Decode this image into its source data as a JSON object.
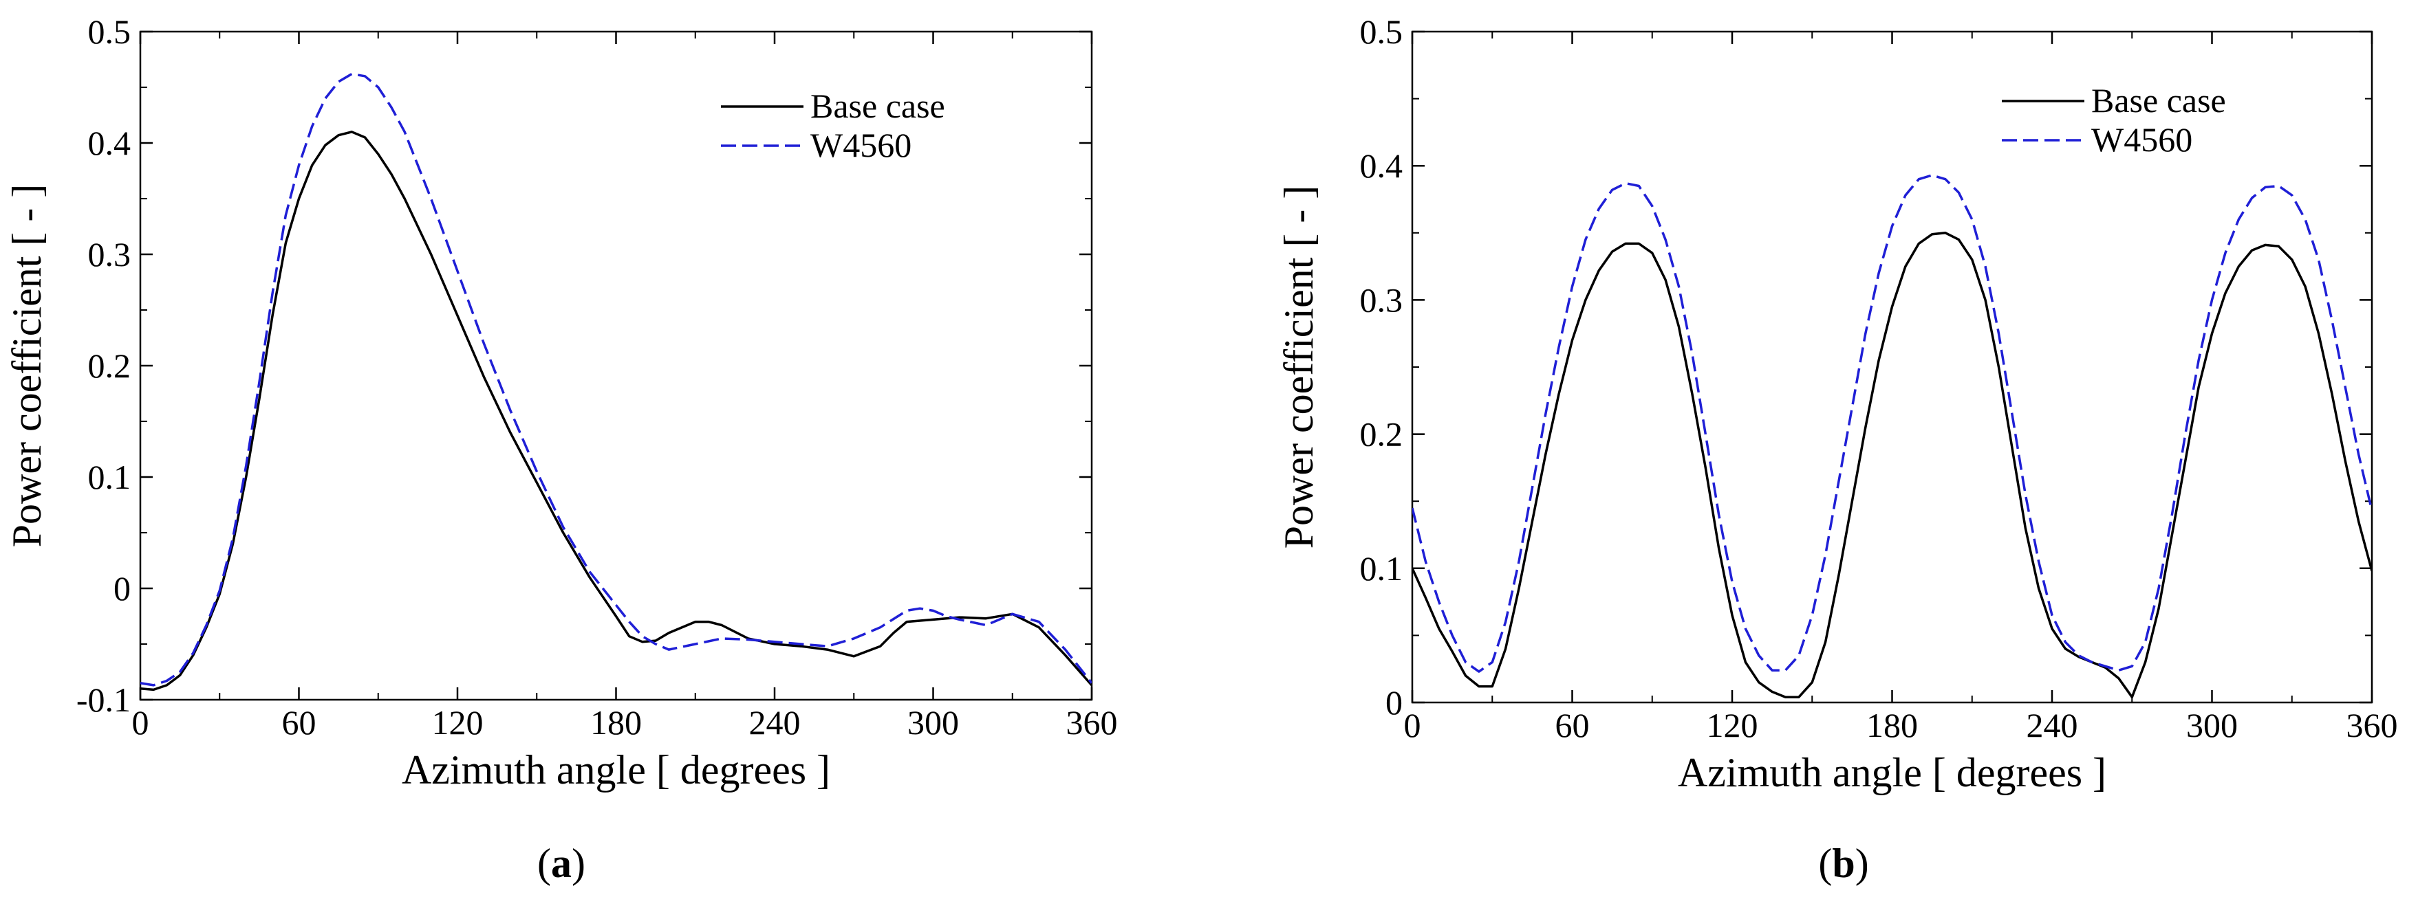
{
  "figure": {
    "panels": [
      {
        "label_open": "(",
        "label_letter": "a",
        "label_close": ")"
      },
      {
        "label_open": "(",
        "label_letter": "b",
        "label_close": ")"
      }
    ]
  },
  "chart_data": [
    {
      "type": "line",
      "panel": "a",
      "title": "",
      "xlabel": "Azimuth angle [ degrees ]",
      "ylabel": "Power coefficient [ - ]",
      "xlim": [
        0,
        360
      ],
      "ylim": [
        -0.1,
        0.5
      ],
      "xticks": [
        0,
        60,
        120,
        180,
        240,
        300,
        360
      ],
      "xtick_labels": [
        "0",
        "60",
        "120",
        "180",
        "240",
        "300",
        "360"
      ],
      "yticks": [
        -0.1,
        0,
        0.1,
        0.2,
        0.3,
        0.4,
        0.5
      ],
      "ytick_labels": [
        "-0.1",
        "0",
        "0.1",
        "0.2",
        "0.3",
        "0.4",
        "0.5"
      ],
      "legend_position": "top-right",
      "series": [
        {
          "name": "Base case",
          "color": "#000000",
          "dash": "solid",
          "x": [
            0,
            5,
            10,
            15,
            20,
            25,
            30,
            35,
            40,
            45,
            50,
            55,
            60,
            65,
            70,
            75,
            80,
            85,
            90,
            95,
            100,
            110,
            120,
            130,
            140,
            150,
            160,
            170,
            180,
            185,
            190,
            195,
            200,
            210,
            215,
            220,
            230,
            240,
            250,
            260,
            270,
            280,
            285,
            290,
            300,
            310,
            320,
            330,
            340,
            350,
            360
          ],
          "y": [
            -0.09,
            -0.091,
            -0.087,
            -0.078,
            -0.06,
            -0.035,
            -0.005,
            0.04,
            0.1,
            0.17,
            0.245,
            0.31,
            0.35,
            0.38,
            0.398,
            0.407,
            0.41,
            0.405,
            0.39,
            0.372,
            0.35,
            0.3,
            0.245,
            0.19,
            0.14,
            0.095,
            0.05,
            0.01,
            -0.025,
            -0.043,
            -0.048,
            -0.047,
            -0.04,
            -0.03,
            -0.03,
            -0.033,
            -0.045,
            -0.05,
            -0.052,
            -0.055,
            -0.061,
            -0.052,
            -0.04,
            -0.03,
            -0.028,
            -0.026,
            -0.027,
            -0.023,
            -0.035,
            -0.06,
            -0.087
          ]
        },
        {
          "name": "W4560",
          "color": "#1f1fd6",
          "dash": "dashed",
          "x": [
            0,
            5,
            10,
            15,
            20,
            25,
            30,
            35,
            40,
            45,
            50,
            55,
            60,
            65,
            70,
            75,
            80,
            85,
            90,
            95,
            100,
            110,
            120,
            130,
            140,
            150,
            160,
            170,
            180,
            185,
            190,
            195,
            200,
            210,
            220,
            230,
            240,
            250,
            260,
            270,
            280,
            290,
            295,
            300,
            305,
            310,
            320,
            330,
            340,
            350,
            360
          ],
          "y": [
            -0.085,
            -0.087,
            -0.083,
            -0.075,
            -0.058,
            -0.033,
            -0.002,
            0.045,
            0.11,
            0.185,
            0.265,
            0.335,
            0.38,
            0.415,
            0.44,
            0.455,
            0.462,
            0.46,
            0.45,
            0.432,
            0.41,
            0.35,
            0.285,
            0.22,
            0.16,
            0.105,
            0.055,
            0.015,
            -0.015,
            -0.03,
            -0.043,
            -0.05,
            -0.055,
            -0.05,
            -0.045,
            -0.046,
            -0.048,
            -0.05,
            -0.052,
            -0.045,
            -0.035,
            -0.02,
            -0.018,
            -0.02,
            -0.025,
            -0.028,
            -0.033,
            -0.023,
            -0.03,
            -0.055,
            -0.085
          ]
        }
      ]
    },
    {
      "type": "line",
      "panel": "b",
      "title": "",
      "xlabel": "Azimuth angle [ degrees ]",
      "ylabel": "Power coefficient [ - ]",
      "xlim": [
        0,
        360
      ],
      "ylim": [
        0,
        0.5
      ],
      "xticks": [
        0,
        60,
        120,
        180,
        240,
        300,
        360
      ],
      "xtick_labels": [
        "0",
        "60",
        "120",
        "180",
        "240",
        "300",
        "360"
      ],
      "yticks": [
        0,
        0.1,
        0.2,
        0.3,
        0.4,
        0.5
      ],
      "ytick_labels": [
        "0",
        "0.1",
        "0.2",
        "0.3",
        "0.4",
        "0.5"
      ],
      "legend_position": "top-right",
      "series": [
        {
          "name": "Base case",
          "color": "#000000",
          "dash": "solid",
          "x": [
            0,
            5,
            10,
            15,
            20,
            25,
            30,
            35,
            40,
            45,
            50,
            55,
            60,
            65,
            70,
            75,
            80,
            85,
            90,
            95,
            100,
            105,
            110,
            115,
            120,
            125,
            130,
            135,
            140,
            145,
            150,
            155,
            160,
            165,
            170,
            175,
            180,
            185,
            190,
            195,
            200,
            205,
            210,
            215,
            220,
            225,
            230,
            235,
            240,
            245,
            250,
            255,
            260,
            265,
            270,
            275,
            280,
            285,
            290,
            295,
            300,
            305,
            310,
            315,
            320,
            325,
            330,
            335,
            340,
            345,
            350,
            355,
            360
          ],
          "y": [
            0.1,
            0.078,
            0.055,
            0.038,
            0.02,
            0.012,
            0.012,
            0.04,
            0.085,
            0.135,
            0.185,
            0.23,
            0.27,
            0.3,
            0.322,
            0.336,
            0.342,
            0.342,
            0.335,
            0.315,
            0.28,
            0.23,
            0.175,
            0.115,
            0.065,
            0.03,
            0.015,
            0.008,
            0.004,
            0.004,
            0.015,
            0.045,
            0.095,
            0.15,
            0.205,
            0.255,
            0.295,
            0.325,
            0.342,
            0.349,
            0.35,
            0.345,
            0.33,
            0.3,
            0.25,
            0.19,
            0.13,
            0.085,
            0.055,
            0.04,
            0.034,
            0.03,
            0.026,
            0.018,
            0.004,
            0.03,
            0.07,
            0.125,
            0.18,
            0.235,
            0.275,
            0.305,
            0.325,
            0.337,
            0.341,
            0.34,
            0.33,
            0.31,
            0.275,
            0.23,
            0.18,
            0.135,
            0.098
          ]
        },
        {
          "name": "W4560",
          "color": "#1f1fd6",
          "dash": "dashed",
          "x": [
            0,
            5,
            10,
            15,
            20,
            25,
            30,
            35,
            40,
            45,
            50,
            55,
            60,
            65,
            70,
            75,
            80,
            85,
            90,
            95,
            100,
            105,
            110,
            115,
            120,
            125,
            130,
            135,
            140,
            145,
            150,
            155,
            160,
            165,
            170,
            175,
            180,
            185,
            190,
            195,
            200,
            205,
            210,
            215,
            220,
            225,
            230,
            235,
            240,
            245,
            250,
            255,
            260,
            265,
            270,
            275,
            280,
            285,
            290,
            295,
            300,
            305,
            310,
            315,
            320,
            325,
            330,
            335,
            340,
            345,
            350,
            355,
            360
          ],
          "y": [
            0.145,
            0.105,
            0.075,
            0.05,
            0.03,
            0.023,
            0.03,
            0.06,
            0.105,
            0.16,
            0.215,
            0.265,
            0.31,
            0.345,
            0.368,
            0.382,
            0.387,
            0.385,
            0.37,
            0.345,
            0.31,
            0.26,
            0.2,
            0.14,
            0.09,
            0.055,
            0.035,
            0.024,
            0.024,
            0.035,
            0.065,
            0.11,
            0.165,
            0.22,
            0.275,
            0.32,
            0.355,
            0.378,
            0.39,
            0.393,
            0.39,
            0.38,
            0.36,
            0.325,
            0.275,
            0.215,
            0.155,
            0.105,
            0.065,
            0.045,
            0.035,
            0.03,
            0.027,
            0.024,
            0.027,
            0.045,
            0.085,
            0.14,
            0.2,
            0.255,
            0.3,
            0.335,
            0.36,
            0.376,
            0.384,
            0.385,
            0.378,
            0.36,
            0.33,
            0.285,
            0.235,
            0.185,
            0.143
          ]
        }
      ]
    }
  ]
}
